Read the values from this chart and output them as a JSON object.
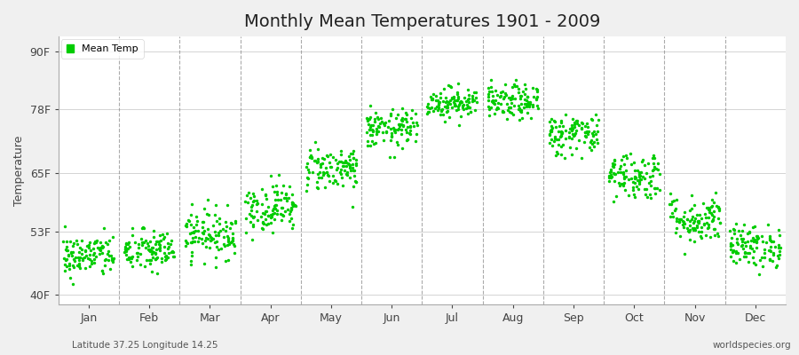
{
  "title": "Monthly Mean Temperatures 1901 - 2009",
  "ylabel": "Temperature",
  "xlabel_bottom": "Latitude 37.25 Longitude 14.25",
  "xlabel_right": "worldspecies.org",
  "legend_label": "Mean Temp",
  "ytick_labels": [
    "40F",
    "53F",
    "65F",
    "78F",
    "90F"
  ],
  "ytick_values": [
    40,
    53,
    65,
    78,
    90
  ],
  "ylim": [
    38,
    93
  ],
  "xlim": [
    0,
    12
  ],
  "months": [
    "Jan",
    "Feb",
    "Mar",
    "Apr",
    "May",
    "Jun",
    "Jul",
    "Aug",
    "Sep",
    "Oct",
    "Nov",
    "Dec"
  ],
  "month_centers": [
    0.5,
    1.5,
    2.5,
    3.5,
    4.5,
    5.5,
    6.5,
    7.5,
    8.5,
    9.5,
    10.5,
    11.5
  ],
  "dot_color": "#00cc00",
  "figure_background": "#f0f0f0",
  "plot_background": "#ffffff",
  "grid_color": "#888888",
  "num_years": 109,
  "monthly_mean_F": [
    48.0,
    49.0,
    52.5,
    58.0,
    66.0,
    74.0,
    79.5,
    79.5,
    73.0,
    64.5,
    55.5,
    50.0
  ],
  "monthly_std_F": [
    2.2,
    2.2,
    2.5,
    2.5,
    2.3,
    2.0,
    1.6,
    1.8,
    2.2,
    2.5,
    2.5,
    2.2
  ],
  "seed": 42,
  "dot_size": 6,
  "title_fontsize": 14,
  "axis_fontsize": 9,
  "label_fontsize": 8
}
